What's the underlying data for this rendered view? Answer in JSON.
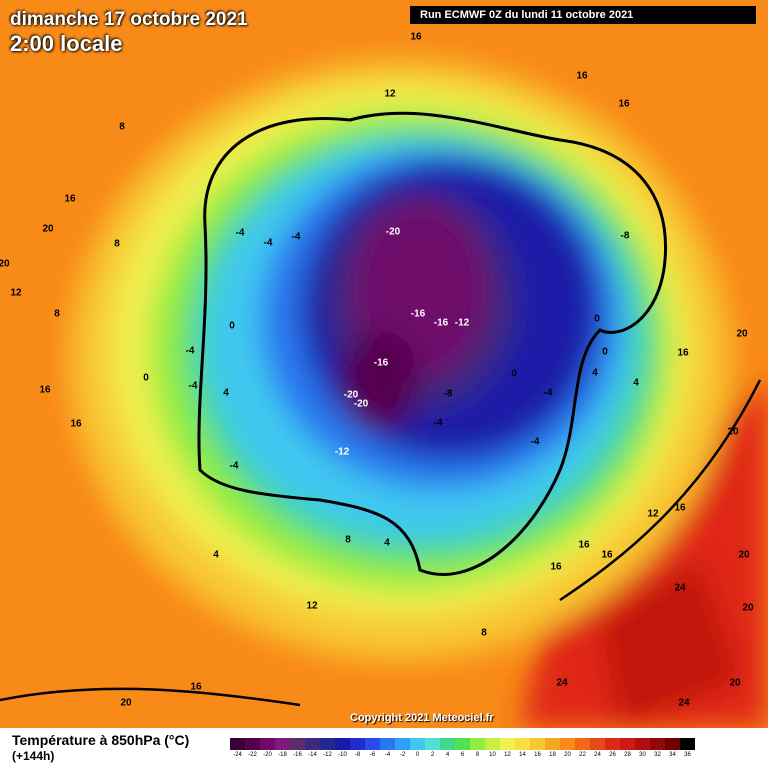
{
  "header": {
    "date": "dimanche 17 octobre 2021",
    "time": "2:00 locale",
    "run": "Run ECMWF 0Z du lundi 11 octobre 2021"
  },
  "map": {
    "contour_labels": [
      16,
      16,
      16,
      12,
      8,
      16,
      20,
      20,
      8,
      -4,
      -4,
      -4,
      -20,
      -8,
      12,
      8,
      0,
      -16,
      -16,
      -12,
      0,
      0,
      16,
      20,
      -4,
      -16,
      0,
      4,
      4,
      0,
      -4,
      4,
      -20,
      -20,
      -8,
      -4,
      16,
      16,
      -4,
      -4,
      20,
      -12,
      -4,
      12,
      16,
      8,
      4,
      16,
      4,
      16,
      16,
      20,
      24,
      12,
      8,
      20,
      20,
      16,
      24,
      20,
      24
    ],
    "copyright": "Copyright 2021 Meteociel.fr"
  },
  "footer": {
    "title": "Température à 850hPa (°C)",
    "lead": "(+144h)",
    "scale": {
      "labels": [
        -24,
        -22,
        -20,
        -18,
        -16,
        -14,
        -12,
        -10,
        -8,
        -6,
        -4,
        -2,
        0,
        2,
        4,
        6,
        8,
        10,
        12,
        14,
        16,
        18,
        20,
        22,
        24,
        26,
        28,
        30,
        32,
        34,
        36
      ],
      "colors": [
        "#3b0036",
        "#55004f",
        "#6e0a6a",
        "#7d1a7a",
        "#5c2b6d",
        "#3a2b80",
        "#26268f",
        "#1a1aa8",
        "#1f2ad0",
        "#2a4af0",
        "#2a78f0",
        "#30a0f5",
        "#40c8f0",
        "#50e0d8",
        "#40d890",
        "#50e050",
        "#90ec40",
        "#c8f040",
        "#f0f050",
        "#f8e040",
        "#f8c830",
        "#f8a820",
        "#f88a18",
        "#f06818",
        "#e84818",
        "#e02818",
        "#d01818",
        "#b01010",
        "#900808",
        "#700000",
        "#000000"
      ]
    }
  }
}
